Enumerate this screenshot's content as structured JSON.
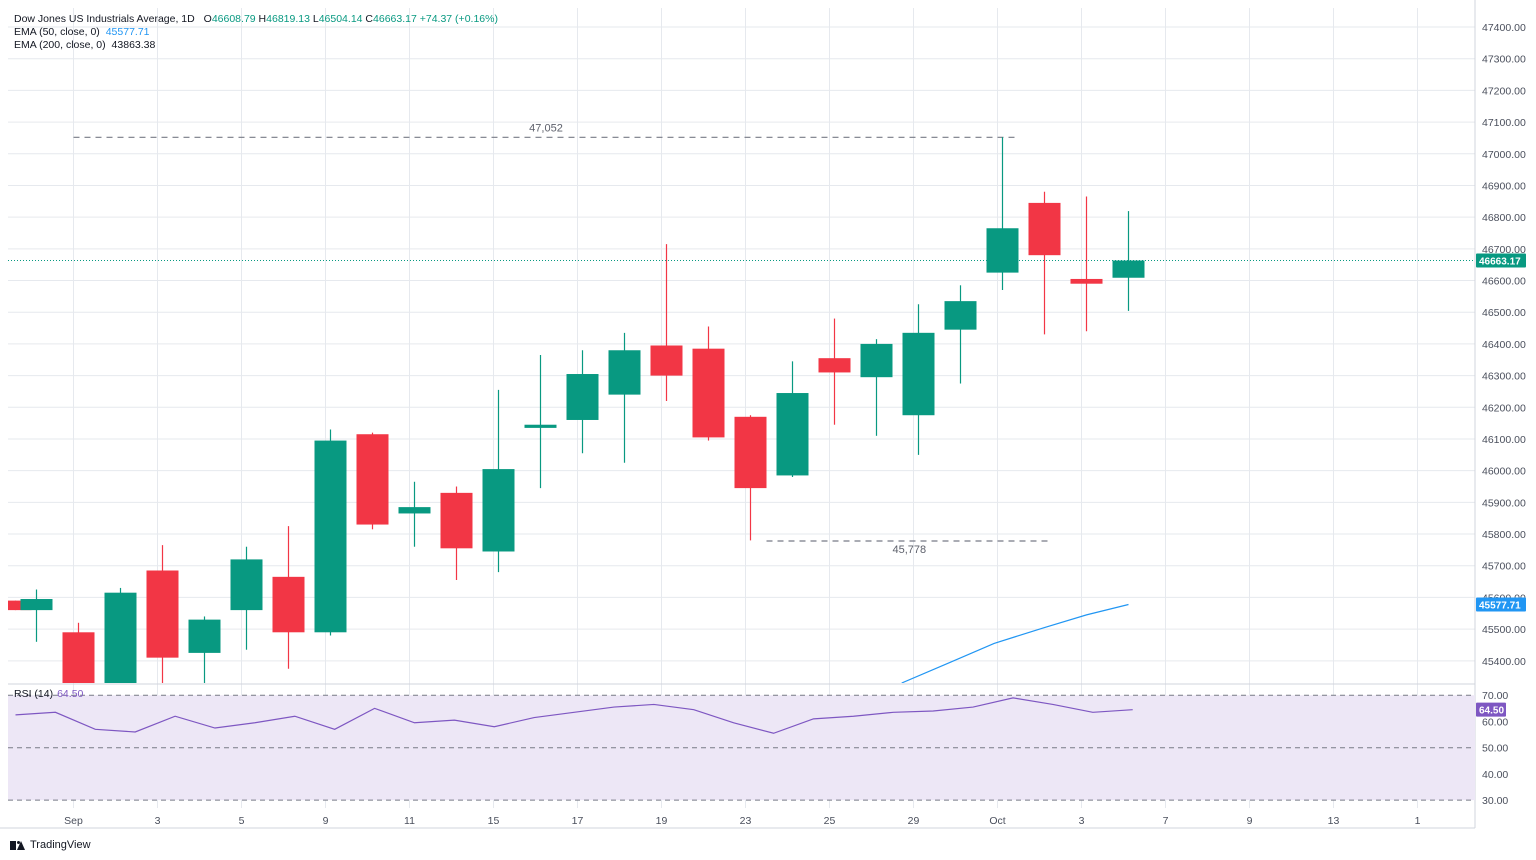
{
  "legend": {
    "title_name": "Dow Jones US Industrials Average, 1D",
    "open_label": "O",
    "open": "46608.79",
    "high_label": "H",
    "high": "46819.13",
    "low_label": "L",
    "low": "46504.14",
    "close_label": "C",
    "close": "46663.17",
    "change": "+74.37 (+0.16%)",
    "ema50_label": "EMA (50, close, 0)",
    "ema50_value": "45577.71",
    "ema200_label": "EMA (200, close, 0)",
    "ema200_value": "43863.38",
    "rsi_label": "RSI (14)",
    "rsi_value": "64.50"
  },
  "brand": {
    "name": "TradingView"
  },
  "colors": {
    "up": "#089981",
    "down": "#f23645",
    "ema": "#2196f3",
    "rsi": "#7e57c2",
    "rsi_band": "#ede7f6",
    "grid": "#e6e9ee",
    "text": "#131722",
    "axis_text": "#4a4f5c"
  },
  "chart_data": [
    {
      "type": "candlestick",
      "x_ticks": [
        {
          "i": 1,
          "label": "Sep"
        },
        {
          "i": 3,
          "label": "3"
        },
        {
          "i": 5,
          "label": "5"
        },
        {
          "i": 7,
          "label": "9"
        },
        {
          "i": 9,
          "label": "11"
        },
        {
          "i": 11,
          "label": "15"
        },
        {
          "i": 13,
          "label": "17"
        },
        {
          "i": 15,
          "label": "19"
        },
        {
          "i": 17,
          "label": "23"
        },
        {
          "i": 19,
          "label": "25"
        },
        {
          "i": 21,
          "label": "29"
        },
        {
          "i": 23,
          "label": "Oct"
        },
        {
          "i": 25,
          "label": "3"
        },
        {
          "i": 27,
          "label": "7"
        },
        {
          "i": 29,
          "label": "9"
        },
        {
          "i": 31,
          "label": "13"
        },
        {
          "i": 33,
          "label": "1"
        }
      ],
      "ylim": [
        45330,
        47460
      ],
      "y_ticks": [
        "47400.00",
        "47300.00",
        "47200.00",
        "47100.00",
        "47000.00",
        "46900.00",
        "46800.00",
        "46700.00",
        "46600.00",
        "46500.00",
        "46400.00",
        "46300.00",
        "46200.00",
        "46100.00",
        "46000.00",
        "45900.00",
        "45800.00",
        "45700.00",
        "45600.00",
        "45500.00",
        "45400.00"
      ],
      "candles": [
        {
          "i": 0,
          "o": 45590,
          "h": 45590,
          "l": 45560,
          "c": 45560
        },
        {
          "i": 0.5,
          "o": 45560,
          "h": 45625,
          "l": 45460,
          "c": 45595
        },
        {
          "i": 1.5,
          "o": 45490,
          "h": 45520,
          "l": 45330,
          "c": 45330
        },
        {
          "i": 2.5,
          "o": 45330,
          "h": 45630,
          "l": 45330,
          "c": 45615
        },
        {
          "i": 3.5,
          "o": 45685,
          "h": 45765,
          "l": 45330,
          "c": 45410
        },
        {
          "i": 4.5,
          "o": 45425,
          "h": 45540,
          "l": 45330,
          "c": 45530
        },
        {
          "i": 5.5,
          "o": 45560,
          "h": 45760,
          "l": 45435,
          "c": 45720
        },
        {
          "i": 6.5,
          "o": 45665,
          "h": 45825,
          "l": 45375,
          "c": 45490
        },
        {
          "i": 7.5,
          "o": 45490,
          "h": 46130,
          "l": 45480,
          "c": 46095
        },
        {
          "i": 8.5,
          "o": 46115,
          "h": 46120,
          "l": 45815,
          "c": 45830
        },
        {
          "i": 9.5,
          "o": 45865,
          "h": 45965,
          "l": 45760,
          "c": 45885
        },
        {
          "i": 10.5,
          "o": 45930,
          "h": 45950,
          "l": 45655,
          "c": 45755
        },
        {
          "i": 11.5,
          "o": 45745,
          "h": 46255,
          "l": 45680,
          "c": 46005
        },
        {
          "i": 12.5,
          "o": 46135,
          "h": 46365,
          "l": 45945,
          "c": 46145
        },
        {
          "i": 13.5,
          "o": 46160,
          "h": 46380,
          "l": 46055,
          "c": 46305
        },
        {
          "i": 14.5,
          "o": 46240,
          "h": 46435,
          "l": 46025,
          "c": 46380
        },
        {
          "i": 15.5,
          "o": 46395,
          "h": 46715,
          "l": 46220,
          "c": 46300
        },
        {
          "i": 16.5,
          "o": 46385,
          "h": 46455,
          "l": 46095,
          "c": 46105
        },
        {
          "i": 17.5,
          "o": 46170,
          "h": 46175,
          "l": 45780,
          "c": 45945
        },
        {
          "i": 18.5,
          "o": 45985,
          "h": 46345,
          "l": 45980,
          "c": 46245
        },
        {
          "i": 19.5,
          "o": 46355,
          "h": 46480,
          "l": 46145,
          "c": 46310
        },
        {
          "i": 20.5,
          "o": 46295,
          "h": 46415,
          "l": 46110,
          "c": 46400
        },
        {
          "i": 21.5,
          "o": 46175,
          "h": 46525,
          "l": 46050,
          "c": 46435
        },
        {
          "i": 22.5,
          "o": 46445,
          "h": 46585,
          "l": 46275,
          "c": 46535
        },
        {
          "i": 23.5,
          "o": 46625,
          "h": 47052,
          "l": 46570,
          "c": 46765
        },
        {
          "i": 24.5,
          "o": 46845,
          "h": 46880,
          "l": 46430,
          "c": 46680
        },
        {
          "i": 25.5,
          "o": 46605,
          "h": 46865,
          "l": 46440,
          "c": 46590
        },
        {
          "i": 26.5,
          "o": 46608.79,
          "h": 46819.13,
          "l": 46504.14,
          "c": 46663.17
        }
      ],
      "ema50": [
        {
          "i": 21.1,
          "v": 45330
        },
        {
          "i": 22.2,
          "v": 45392
        },
        {
          "i": 23.3,
          "v": 45455
        },
        {
          "i": 24.5,
          "v": 45505
        },
        {
          "i": 25.5,
          "v": 45545
        },
        {
          "i": 26.5,
          "v": 45577.71
        }
      ],
      "annotations": [
        {
          "label": "47,052",
          "value": 47052,
          "from_i": 1,
          "to_i": 23.5
        },
        {
          "label": "45,778",
          "value": 45778,
          "from_i": 17.5,
          "to_i": 24.3
        }
      ],
      "price_labels": [
        {
          "label": "46663.17",
          "value": 46663.17,
          "color": "#089981"
        },
        {
          "label": "45577.71",
          "value": 45577.71,
          "color": "#2196f3"
        }
      ]
    },
    {
      "type": "line",
      "name": "RSI (14)",
      "ylim": [
        27,
        72
      ],
      "y_ticks": [
        "70.00",
        "60.00",
        "50.00",
        "40.00",
        "30.00"
      ],
      "band": [
        30,
        70
      ],
      "midline": 50,
      "points": [
        {
          "i": 0,
          "v": 62.5
        },
        {
          "i": 1,
          "v": 63.5
        },
        {
          "i": 2,
          "v": 57
        },
        {
          "i": 3,
          "v": 56
        },
        {
          "i": 4,
          "v": 62
        },
        {
          "i": 5,
          "v": 57.5
        },
        {
          "i": 6,
          "v": 59.5
        },
        {
          "i": 7,
          "v": 62
        },
        {
          "i": 8,
          "v": 57
        },
        {
          "i": 9,
          "v": 65
        },
        {
          "i": 10,
          "v": 59.5
        },
        {
          "i": 11,
          "v": 60.5
        },
        {
          "i": 12,
          "v": 58
        },
        {
          "i": 13,
          "v": 61.5
        },
        {
          "i": 14,
          "v": 63.5
        },
        {
          "i": 15,
          "v": 65.5
        },
        {
          "i": 16,
          "v": 66.5
        },
        {
          "i": 17,
          "v": 64.5
        },
        {
          "i": 18,
          "v": 59.5
        },
        {
          "i": 19,
          "v": 55.5
        },
        {
          "i": 20,
          "v": 61
        },
        {
          "i": 21,
          "v": 62
        },
        {
          "i": 22,
          "v": 63.5
        },
        {
          "i": 23,
          "v": 64
        },
        {
          "i": 24,
          "v": 65.5
        },
        {
          "i": 25,
          "v": 69
        },
        {
          "i": 26,
          "v": 66.5
        },
        {
          "i": 27,
          "v": 63.5
        },
        {
          "i": 28,
          "v": 64.5
        }
      ],
      "current_label": "64.50"
    }
  ]
}
